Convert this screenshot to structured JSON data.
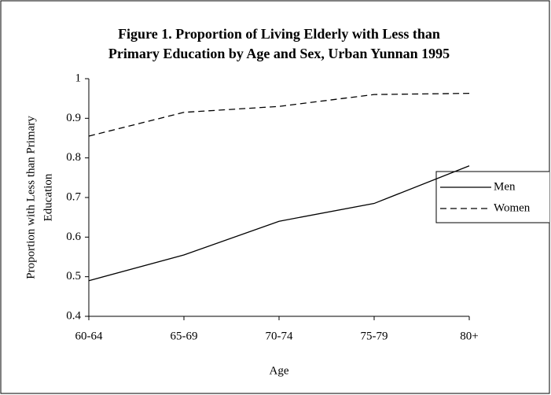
{
  "chart_data": {
    "type": "line",
    "title": [
      "Figure 1. Proportion of Living Elderly with Less than",
      "Primary Education by Age and Sex, Urban Yunnan 1995"
    ],
    "ylabel": [
      "Proportion with Less than Primary",
      "Education"
    ],
    "xlabel": "Age",
    "categories": [
      "60-64",
      "65-69",
      "70-74",
      "75-79",
      "80+"
    ],
    "series": [
      {
        "name": "Men",
        "color": "#000000",
        "dash": "none",
        "values": [
          0.49,
          0.555,
          0.64,
          0.685,
          0.78
        ]
      },
      {
        "name": "Women",
        "color": "#000000",
        "dash": "8,5",
        "values": [
          0.855,
          0.915,
          0.93,
          0.96,
          0.963
        ]
      }
    ],
    "ylim": [
      0.4,
      1
    ],
    "yticks": [
      0.4,
      0.5,
      0.6,
      0.7,
      0.8,
      0.9,
      1
    ],
    "grid": false,
    "legend": "right"
  }
}
